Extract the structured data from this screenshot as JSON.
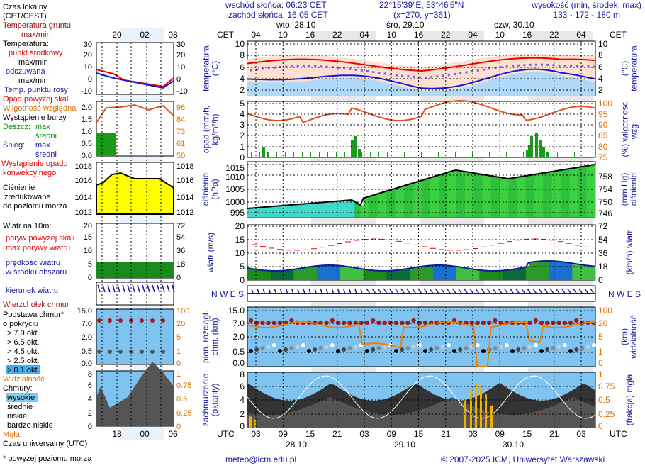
{
  "header": {
    "sunrise": "wschód słońca: 06:23 CET",
    "sunset": "zachód słońca: 16:05 CET",
    "coords": "22°15'39\"E, 53°46'5\"N",
    "grid": "(x=270, y=361)",
    "elev_label": "wysokość (min, środek, max)",
    "elev": "133 - 172 - 180 m"
  },
  "days": [
    "wto, 28.10",
    "śro, 29.10",
    "czw, 30.10"
  ],
  "cet_hours": [
    "04",
    "10",
    "16",
    "22",
    "04",
    "10",
    "16",
    "22",
    "04",
    "10",
    "16",
    "22",
    "04"
  ],
  "utc_hours": [
    "03",
    "09",
    "15",
    "21",
    "03",
    "09",
    "15",
    "21",
    "03",
    "09",
    "15",
    "21",
    "03"
  ],
  "utc_dates": [
    "28.10",
    "29.10",
    "30.10"
  ],
  "tz": {
    "cet": "CET",
    "utc": "UTC"
  },
  "axes": {
    "temp": {
      "left": "temperatura (°C)",
      "right": "(°C) temperatura",
      "ticks": [
        "10",
        "8",
        "6",
        "4",
        "2"
      ]
    },
    "precip": {
      "left": "opad (mm/h, kg/m²/h)",
      "right": "(%) wilgotność wzgl.",
      "ticks": [
        "5",
        "4",
        "3",
        "2",
        "1",
        "0"
      ],
      "rticks": [
        "100",
        "95",
        "90",
        "85",
        "80",
        "75"
      ]
    },
    "press": {
      "left": "ciśnienie (hPa)",
      "right": "(mm Hg) ciśnienie",
      "ticks": [
        "1015",
        "1010",
        "1005",
        "1000",
        "995"
      ],
      "rticks": [
        "758",
        "754",
        "750",
        "746"
      ]
    },
    "wind": {
      "left": "wiatr (m/s)",
      "right": "(km/h) wiatr",
      "ticks": [
        "20",
        "15",
        "10",
        "5",
        "0"
      ],
      "rticks": [
        "72",
        "54",
        "36",
        "18",
        "0"
      ]
    },
    "dir": {
      "compass": "N W E S"
    },
    "cbase": {
      "left": "pion. rozciągł. chm. (km)",
      "right": "(km) widzialność",
      "ticks": [
        "15.0",
        "7.0",
        "2.0",
        "0.5",
        "0.0"
      ],
      "rticks": [
        "100",
        "20",
        "5",
        "1",
        "0"
      ]
    },
    "clouds": {
      "left": "zachmurzenie (oktanty)",
      "right": "(frakcja) mgła",
      "ticks": [
        "8",
        "6",
        "4",
        "2",
        "0"
      ],
      "rticks": [
        "1",
        "0.75",
        "0.5",
        "0.25",
        "0"
      ]
    }
  },
  "legend": {
    "local_time": "Czas lokalny",
    "local_tz": "(CET/CEST)",
    "mini_cet": [
      "20",
      "02",
      "08"
    ],
    "mini_utc": [
      "18",
      "00",
      "06"
    ],
    "ground": "Temperatura gruntu",
    "ground2": "max/min",
    "temp": "Temperatura:",
    "mid": "punkt środkowy",
    "maxmin": "max/min",
    "felt": "odczuwana",
    "felt_mm": "max/min",
    "dew": "Temp. punktu rosy",
    "temp_ticks": [
      "30",
      "20",
      "10",
      "0",
      "-10"
    ],
    "over": "Opad powyżej skali",
    "hum": "Wilgotność względna",
    "storm": "Wystąpienie burzy",
    "rain": "Deszcz:",
    "rmax": "max",
    "ravg": "średni",
    "snow": "Śnieg:",
    "smax": "max",
    "savg": "średni",
    "conv": "Wystąpienie opadu",
    "conv2": "konwekcyjnego",
    "pr_ticks": [
      "2.0",
      "1.5",
      "1.0",
      "0.5",
      "0.0"
    ],
    "hum_ticks": [
      "96",
      "84",
      "73",
      "61",
      "50"
    ],
    "press": "Ciśnienie",
    "press2": "zredukowane",
    "press3": "do poziomu morza",
    "press_ticks": [
      "1018",
      "1016",
      "1014",
      "1012"
    ],
    "wind": "Wiatr na 10m:",
    "gust_over": "poryw powyżej skali",
    "gust": "max porywy wiatru",
    "speed": "prędkość wiatru",
    "speed2": "w środku obszaru",
    "wind_ticks": [
      "20",
      "15",
      "10",
      "5",
      "0"
    ],
    "wind_rticks": [
      "72",
      "54",
      "36",
      "18",
      "0"
    ],
    "dir": "kierunek wiatru",
    "top": "Wierzchołek chmur",
    "base": "Podstawa chmur*",
    "base2": "o pokryciu",
    "o79": "> 7.9 okt.",
    "o65": "> 6.5 okt.",
    "o45": "> 4.5 okt.",
    "o25": "> 2.5 okt.",
    "o01": "> 0.1 okt.",
    "cb_ticks": [
      "15.0",
      "7.0",
      "2.0",
      "0.5",
      "0.0"
    ],
    "vis_ticks": [
      "100",
      "20",
      "5",
      "1",
      "0"
    ],
    "vis": "Widzialność",
    "clouds": "Chmury:",
    "high": "wysokie",
    "mid_c": "średnie",
    "low": "niskie",
    "vlow": "bardzo niskie",
    "fog": "Mgła",
    "cl_ticks": [
      "8",
      "6",
      "4",
      "2",
      "0"
    ],
    "fog_ticks": [
      "1",
      "0.75",
      "0.5",
      "0.25",
      "0"
    ],
    "utc": "Czas uniwersalny (UTC)",
    "note": "* powyżej poziomu morza"
  },
  "footer": {
    "email": "meteo@icm.edu.pl",
    "copy": "© 2007-2025 ICM, Uniwersytet Warszawski"
  }
}
